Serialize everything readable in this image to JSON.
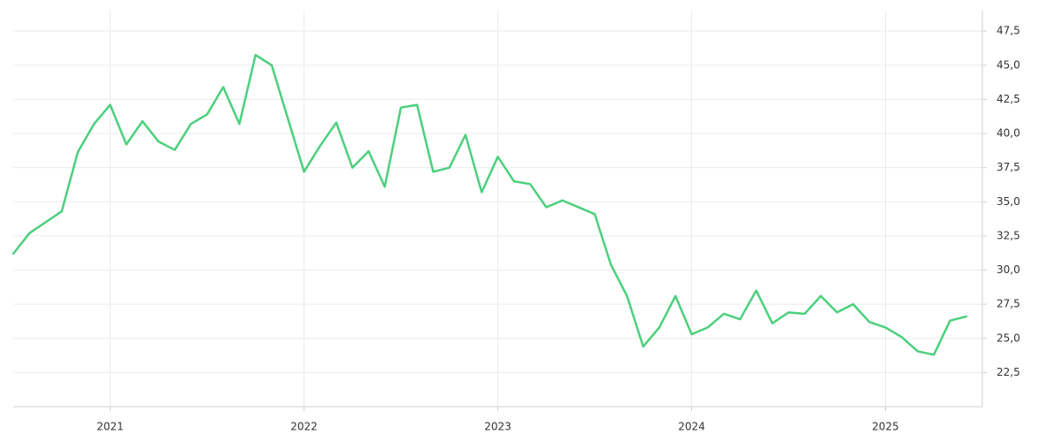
{
  "chart_data": {
    "type": "line",
    "x": [
      "2020-07",
      "2020-08",
      "2020-09",
      "2020-10",
      "2020-11",
      "2020-12",
      "2021-01",
      "2021-02",
      "2021-03",
      "2021-04",
      "2021-05",
      "2021-06",
      "2021-07",
      "2021-08",
      "2021-09",
      "2021-10",
      "2021-11",
      "2021-12",
      "2022-01",
      "2022-02",
      "2022-03",
      "2022-04",
      "2022-05",
      "2022-06",
      "2022-07",
      "2022-08",
      "2022-09",
      "2022-10",
      "2022-11",
      "2022-12",
      "2023-01",
      "2023-02",
      "2023-03",
      "2023-04",
      "2023-05",
      "2023-06",
      "2023-07",
      "2023-08",
      "2023-09",
      "2023-10",
      "2023-11",
      "2023-12",
      "2024-01",
      "2024-02",
      "2024-03",
      "2024-04",
      "2024-05",
      "2024-06",
      "2024-07",
      "2024-08",
      "2024-09",
      "2024-10",
      "2024-11",
      "2024-12",
      "2025-01",
      "2025-02",
      "2025-03",
      "2025-04",
      "2025-05",
      "2025-06"
    ],
    "series": [
      {
        "color": "#4cd07d",
        "values": [
          31.2,
          32.7,
          33.5,
          34.3,
          38.65,
          40.7,
          42.1,
          39.2,
          40.9,
          39.4,
          38.8,
          40.7,
          41.4,
          43.4,
          40.7,
          45.75,
          45.0,
          41.1,
          37.2,
          39.1,
          40.8,
          37.5,
          38.7,
          36.1,
          41.9,
          42.1,
          37.2,
          37.5,
          39.9,
          35.7,
          38.3,
          36.5,
          36.3,
          34.6,
          35.1,
          34.6,
          34.1,
          30.4,
          28.1,
          24.4,
          25.8,
          28.1,
          25.3,
          25.8,
          26.8,
          26.4,
          28.5,
          26.1,
          26.9,
          26.8,
          28.1,
          26.9,
          27.5,
          26.2,
          25.8,
          25.1,
          24.05,
          23.8,
          26.3,
          26.6
        ]
      }
    ],
    "xlim": [
      "2020-07",
      "2025-07"
    ],
    "xticks": [
      {
        "value": "2021-01",
        "label": "2021"
      },
      {
        "value": "2022-01",
        "label": "2022"
      },
      {
        "value": "2023-01",
        "label": "2023"
      },
      {
        "value": "2024-01",
        "label": "2024"
      },
      {
        "value": "2025-01",
        "label": "2025"
      }
    ],
    "ylim": [
      20,
      49
    ],
    "yticks": [
      {
        "value": 22.5,
        "label": "22,5"
      },
      {
        "value": 25,
        "label": "25,0"
      },
      {
        "value": 27.5,
        "label": "27,5"
      },
      {
        "value": 30,
        "label": "30,0"
      },
      {
        "value": 32.5,
        "label": "32,5"
      },
      {
        "value": 35,
        "label": "35,0"
      },
      {
        "value": 37.5,
        "label": "37,5"
      },
      {
        "value": 40,
        "label": "40,0"
      },
      {
        "value": 42.5,
        "label": "42,5"
      },
      {
        "value": 45,
        "label": "45,0"
      },
      {
        "value": 47.5,
        "label": "47,5"
      }
    ],
    "grid": true
  }
}
